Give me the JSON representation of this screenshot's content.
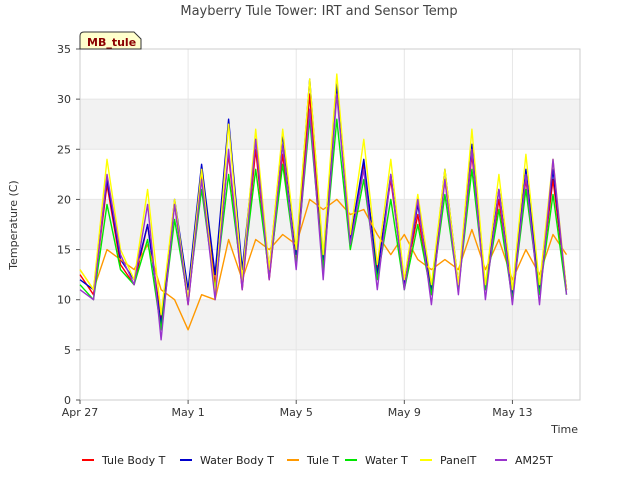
{
  "chart_data": {
    "type": "line",
    "title": "Mayberry Tule Tower: IRT and Sensor Temp",
    "xlabel": "Time",
    "ylabel": "Temperature (C)",
    "site_label": "MB_tule",
    "ylim": [
      0,
      35
    ],
    "yticks": [
      0,
      5,
      10,
      15,
      20,
      25,
      30,
      35
    ],
    "xlim": [
      "2016-04-27",
      "2016-05-15T12:00"
    ],
    "xticks": [
      {
        "date": "2016-04-27",
        "label": "Apr 27"
      },
      {
        "date": "2016-05-01",
        "label": "May 1"
      },
      {
        "date": "2016-05-05",
        "label": "May 5"
      },
      {
        "date": "2016-05-09",
        "label": "May 9"
      },
      {
        "date": "2016-05-13",
        "label": "May 13"
      }
    ],
    "grid": true,
    "legend_position": "bottom",
    "x": [
      "2016-04-27T00:00",
      "2016-04-27T12:00",
      "2016-04-28T00:00",
      "2016-04-28T12:00",
      "2016-04-29T00:00",
      "2016-04-29T12:00",
      "2016-04-30T00:00",
      "2016-04-30T12:00",
      "2016-05-01T00:00",
      "2016-05-01T12:00",
      "2016-05-02T00:00",
      "2016-05-02T12:00",
      "2016-05-03T00:00",
      "2016-05-03T12:00",
      "2016-05-04T00:00",
      "2016-05-04T12:00",
      "2016-05-05T00:00",
      "2016-05-05T12:00",
      "2016-05-06T00:00",
      "2016-05-06T12:00",
      "2016-05-07T00:00",
      "2016-05-07T12:00",
      "2016-05-08T00:00",
      "2016-05-08T12:00",
      "2016-05-09T00:00",
      "2016-05-09T12:00",
      "2016-05-10T00:00",
      "2016-05-10T12:00",
      "2016-05-11T00:00",
      "2016-05-11T12:00",
      "2016-05-12T00:00",
      "2016-05-12T12:00",
      "2016-05-13T00:00",
      "2016-05-13T12:00",
      "2016-05-14T00:00",
      "2016-05-14T12:00",
      "2016-05-15T00:00",
      "2016-05-15T12:00"
    ],
    "series": [
      {
        "name": "Tule Body T",
        "color": "#ff0000",
        "values": [
          12.5,
          10.5,
          21.5,
          13.5,
          11.5,
          17.5,
          8.0,
          19.5,
          9.5,
          22.5,
          11.5,
          24.5,
          11.0,
          25.0,
          12.0,
          24.5,
          13.5,
          30.5,
          13.0,
          31.0,
          15.5,
          23.5,
          13.0,
          22.0,
          11.5,
          18.5,
          10.5,
          22.0,
          11.0,
          24.5,
          11.0,
          20.0,
          10.5,
          22.0,
          11.0,
          22.0,
          11.0,
          null
        ]
      },
      {
        "name": "Water Body T",
        "color": "#0000cc",
        "values": [
          12.0,
          11.0,
          22.0,
          14.0,
          12.0,
          17.5,
          7.5,
          20.0,
          11.0,
          23.5,
          12.5,
          28.0,
          13.0,
          26.0,
          13.0,
          26.5,
          14.5,
          32.0,
          14.0,
          31.5,
          16.0,
          24.0,
          12.5,
          22.5,
          11.5,
          19.5,
          11.0,
          23.0,
          11.5,
          25.5,
          11.0,
          21.0,
          10.5,
          23.0,
          11.0,
          23.0,
          11.0,
          null
        ]
      },
      {
        "name": "Tule T",
        "color": "#ff9900",
        "values": [
          13.0,
          11.0,
          15.0,
          14.0,
          13.0,
          15.5,
          11.0,
          10.0,
          7.0,
          10.5,
          10.0,
          16.0,
          12.0,
          16.0,
          15.0,
          16.5,
          15.5,
          20.0,
          19.0,
          20.0,
          18.5,
          19.0,
          16.5,
          14.5,
          16.5,
          14.0,
          13.0,
          14.0,
          13.0,
          17.0,
          13.0,
          16.0,
          12.0,
          15.0,
          12.5,
          16.5,
          14.5,
          null
        ]
      },
      {
        "name": "Water T",
        "color": "#00e600",
        "values": [
          11.5,
          10.0,
          19.5,
          13.0,
          11.5,
          16.0,
          7.0,
          18.0,
          10.0,
          21.0,
          11.0,
          22.5,
          12.0,
          23.0,
          12.5,
          23.5,
          13.5,
          28.0,
          13.0,
          28.0,
          15.0,
          22.0,
          12.0,
          20.0,
          11.0,
          17.5,
          10.5,
          20.5,
          11.0,
          23.0,
          11.0,
          19.0,
          10.0,
          21.0,
          10.5,
          20.5,
          10.5,
          null
        ]
      },
      {
        "name": "PanelT",
        "color": "#ffff00",
        "values": [
          13.0,
          11.0,
          24.0,
          15.0,
          12.0,
          21.0,
          8.5,
          20.0,
          10.0,
          23.0,
          10.5,
          27.5,
          12.0,
          27.0,
          13.0,
          27.0,
          15.0,
          32.0,
          14.5,
          32.5,
          16.5,
          26.0,
          13.5,
          24.0,
          12.0,
          20.5,
          11.5,
          23.0,
          11.5,
          27.0,
          11.5,
          22.5,
          11.0,
          24.5,
          11.5,
          24.0,
          11.0,
          null
        ]
      },
      {
        "name": "AM25T",
        "color": "#9933cc",
        "values": [
          11.0,
          10.0,
          22.5,
          14.5,
          11.5,
          19.5,
          6.0,
          19.5,
          9.5,
          22.0,
          10.0,
          25.0,
          11.0,
          26.0,
          12.0,
          25.5,
          13.0,
          29.0,
          12.0,
          30.5,
          15.5,
          23.0,
          11.0,
          22.5,
          11.0,
          20.0,
          9.5,
          22.0,
          10.5,
          25.0,
          10.0,
          21.0,
          9.5,
          22.5,
          9.5,
          24.0,
          10.5,
          null
        ]
      }
    ]
  }
}
